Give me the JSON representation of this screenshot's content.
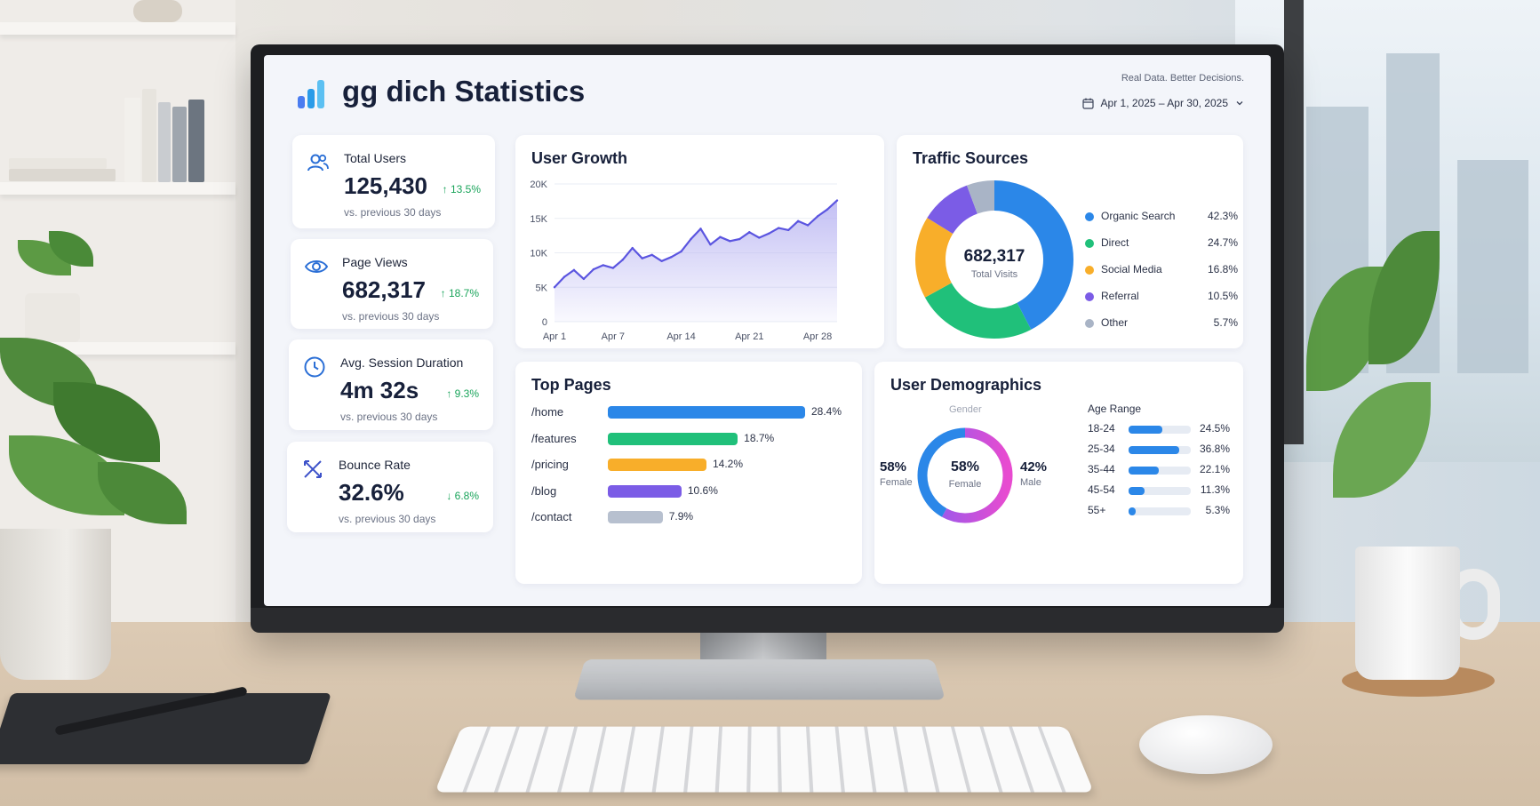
{
  "header": {
    "title": "gg dich Statistics",
    "tagline": "Real Data. Better Decisions.",
    "date_range": "Apr 1, 2025 – Apr 30, 2025",
    "logo_colors": [
      "#4a7cf0",
      "#2b9be8",
      "#5cc0f2"
    ]
  },
  "kpis": [
    {
      "label": "Total Users",
      "value": "125,430",
      "change": "↑ 13.5%",
      "trend": "up",
      "sub": "vs. previous 30 days",
      "icon": "users-icon"
    },
    {
      "label": "Page Views",
      "value": "682,317",
      "change": "↑ 18.7%",
      "trend": "up",
      "sub": "vs. previous 30 days",
      "icon": "eye-icon"
    },
    {
      "label": "Avg. Session Duration",
      "value": "4m 32s",
      "change": "↑ 9.3%",
      "trend": "up",
      "sub": "vs. previous 30 days",
      "icon": "clock-icon"
    },
    {
      "label": "Bounce Rate",
      "value": "32.6%",
      "change": "↓ 6.8%",
      "trend": "down",
      "sub": "vs. previous 30 days",
      "icon": "bounce-icon"
    }
  ],
  "colors": {
    "positive": "#19a45a",
    "accent": "#2b87e8",
    "line": "#5b55e0",
    "area": "#b8b4f2"
  },
  "user_growth": {
    "title": "User Growth"
  },
  "traffic": {
    "title": "Traffic Sources",
    "total_value": "682,317",
    "total_label": "Total Visits"
  },
  "top_pages": {
    "title": "Top Pages"
  },
  "demographics": {
    "title": "User Demographics",
    "gender_label": "Gender",
    "left_value": "58%",
    "left_label": "Female",
    "center_value": "58%",
    "center_label": "Female",
    "right_value": "42%",
    "right_label": "Male",
    "age_title": "Age Range",
    "female_share": 0.58
  },
  "chart_data": [
    {
      "type": "area",
      "title": "User Growth",
      "x": [
        "Apr 1",
        "Apr 2",
        "Apr 3",
        "Apr 4",
        "Apr 5",
        "Apr 6",
        "Apr 7",
        "Apr 8",
        "Apr 9",
        "Apr 10",
        "Apr 11",
        "Apr 12",
        "Apr 13",
        "Apr 14",
        "Apr 15",
        "Apr 16",
        "Apr 17",
        "Apr 18",
        "Apr 19",
        "Apr 20",
        "Apr 21",
        "Apr 22",
        "Apr 23",
        "Apr 24",
        "Apr 25",
        "Apr 26",
        "Apr 27",
        "Apr 28",
        "Apr 29",
        "Apr 30"
      ],
      "values": [
        5000,
        6500,
        7500,
        6200,
        7600,
        8200,
        7800,
        9000,
        10700,
        9200,
        9700,
        8800,
        9400,
        10200,
        12000,
        13500,
        11200,
        12300,
        11700,
        12000,
        13000,
        12200,
        12800,
        13600,
        13300,
        14600,
        14000,
        15300,
        16300,
        17600
      ],
      "xticks": [
        "Apr 1",
        "Apr 7",
        "Apr 14",
        "Apr 21",
        "Apr 28"
      ],
      "yticks": [
        "0",
        "5K",
        "10K",
        "15K",
        "20K"
      ],
      "ylim": [
        0,
        20000
      ],
      "grid": true
    },
    {
      "type": "pie",
      "title": "Traffic Sources",
      "categories": [
        "Organic Search",
        "Direct",
        "Social Media",
        "Referral",
        "Other"
      ],
      "values": [
        42.3,
        24.7,
        16.8,
        10.5,
        5.7
      ],
      "value_labels": [
        "42.3%",
        "24.7%",
        "16.8%",
        "10.5%",
        "5.7%"
      ],
      "colors": [
        "#2b87e8",
        "#20c07a",
        "#f8ae2a",
        "#7b5ce6",
        "#a9b4c6"
      ],
      "legend": "right"
    },
    {
      "type": "bar",
      "title": "Top Pages",
      "orientation": "horizontal",
      "categories": [
        "/home",
        "/features",
        "/pricing",
        "/blog",
        "/contact"
      ],
      "values": [
        28.4,
        18.7,
        14.2,
        10.6,
        7.9
      ],
      "value_labels": [
        "28.4%",
        "18.7%",
        "14.2%",
        "10.6%",
        "7.9%"
      ],
      "colors": [
        "#2b87e8",
        "#20c07a",
        "#f8ae2a",
        "#7b5ce6",
        "#b7c0cf"
      ]
    },
    {
      "type": "bar",
      "title": "Age Range",
      "orientation": "horizontal",
      "categories": [
        "18-24",
        "25-34",
        "35-44",
        "45-54",
        "55+"
      ],
      "values": [
        24.5,
        36.8,
        22.1,
        11.3,
        5.3
      ],
      "value_labels": [
        "24.5%",
        "36.8%",
        "22.1%",
        "11.3%",
        "5.3%"
      ],
      "xlim": [
        0,
        45
      ]
    }
  ]
}
